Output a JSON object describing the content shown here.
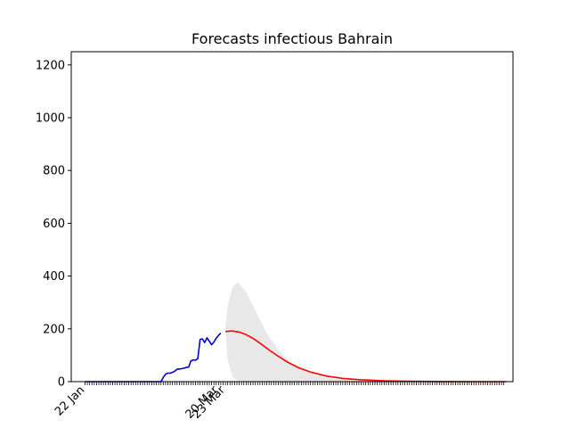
{
  "chart_data": {
    "type": "line",
    "title": "Forecasts infectious Bahrain",
    "xlabel": "",
    "ylabel": "",
    "ylim": [
      0,
      1250
    ],
    "x_axis": {
      "labeled_ticks": [
        {
          "day": 0,
          "label": "22 Jan"
        },
        {
          "day": 58,
          "label": "20 Mar"
        },
        {
          "day": 61,
          "label": "23 Mar"
        }
      ],
      "minor_tick_count": 183,
      "xlim_days": [
        -6,
        186
      ]
    },
    "y_ticks": [
      0,
      200,
      400,
      600,
      800,
      1000,
      1200
    ],
    "grid": false,
    "colors": {
      "observed": "#0000cc",
      "forecast": "#ff0000",
      "band": "#e8e8e8"
    },
    "series": [
      {
        "kind": "observed",
        "x": [
          0,
          10,
          20,
          30,
          33,
          34,
          35,
          36,
          37,
          38,
          39,
          40,
          41,
          42,
          43,
          44,
          45,
          46,
          47,
          48,
          49,
          50,
          51,
          52,
          53,
          54,
          55,
          56,
          57,
          58,
          59
        ],
        "values": [
          0,
          0,
          0,
          0,
          0,
          16,
          28,
          32,
          32,
          35,
          40,
          47,
          48,
          49,
          51,
          54,
          55,
          78,
          82,
          81,
          87,
          160,
          162,
          148,
          166,
          153,
          140,
          150,
          165,
          175,
          184
        ]
      },
      {
        "kind": "forecast",
        "x": [
          61,
          64,
          67,
          70,
          73,
          76,
          80,
          84,
          88,
          93,
          98,
          105,
          112,
          120,
          130,
          140,
          155,
          170,
          183
        ],
        "values": [
          190,
          192,
          188,
          178,
          164,
          146,
          120,
          96,
          74,
          52,
          36,
          21,
          12,
          7,
          3,
          1.5,
          0.5,
          0.1,
          0
        ]
      },
      {
        "kind": "band",
        "x": [
          61,
          62,
          64,
          66,
          67,
          68,
          70,
          72,
          74,
          76,
          78,
          80,
          84,
          88,
          92,
          96,
          100,
          105,
          110,
          115,
          120,
          130,
          140,
          150,
          183
        ],
        "upper": [
          200,
          290,
          355,
          375,
          372,
          360,
          340,
          305,
          270,
          235,
          200,
          170,
          120,
          83,
          57,
          38,
          25,
          15,
          9,
          5,
          3,
          1,
          0.5,
          0.2,
          0
        ],
        "lower": [
          190,
          80,
          20,
          5,
          3,
          2,
          1,
          0.5,
          0.3,
          0.2,
          0.1,
          0.1,
          0,
          0,
          0,
          0,
          0,
          0,
          0,
          0,
          0,
          0,
          0,
          0,
          0
        ]
      }
    ]
  }
}
